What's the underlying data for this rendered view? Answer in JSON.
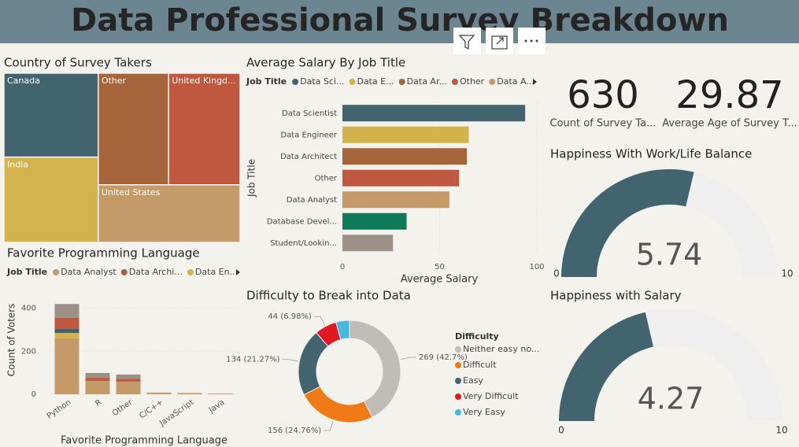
{
  "title": "Data Professional Survey Breakdown",
  "cards": [
    {
      "value": 630,
      "label": "Count of Survey Ta..."
    },
    {
      "value": 29.87,
      "label": "Average Age of Survey T..."
    }
  ],
  "chart_data": [
    {
      "type": "treemap",
      "title": "Country of Survey Takers",
      "categories": [
        "Canada",
        "Other",
        "United Kingd...",
        "India",
        "United States"
      ],
      "values": [
        127,
        126,
        128,
        129,
        131
      ],
      "colors": [
        "#41646e",
        "#a5643a",
        "#c0573f",
        "#d3b34b",
        "#c39a68"
      ]
    },
    {
      "type": "bar",
      "orientation": "horizontal",
      "title": "Average Salary By Job Title",
      "legend_title": "Job Title",
      "legend": [
        {
          "name": "Data Sci...",
          "color": "#41646e"
        },
        {
          "name": "Data E...",
          "color": "#d3b34b"
        },
        {
          "name": "Data Ar...",
          "color": "#a5643a"
        },
        {
          "name": "Other",
          "color": "#c0573f"
        },
        {
          "name": "Data A...",
          "color": "#c39a68"
        }
      ],
      "categories": [
        "Data Scientist",
        "Data Engineer",
        "Data Architect",
        "Other",
        "Data Analyst",
        "Database Devel...",
        "Student/Lookin..."
      ],
      "values": [
        94,
        65,
        64,
        60,
        55,
        33,
        26
      ],
      "colors": [
        "#41646e",
        "#d3b34b",
        "#a5643a",
        "#c0573f",
        "#c39a68",
        "#0e7a5a",
        "#9d9187"
      ],
      "xlim": [
        0,
        100
      ],
      "xticks": [
        0,
        50,
        100
      ],
      "xlabel": "Average Salary",
      "ylabel": "Job Title",
      "grid": true
    },
    {
      "type": "bar",
      "orientation": "vertical",
      "stacked": true,
      "title": "Favorite Programming Language",
      "legend_title": "Job Title",
      "categories": [
        "Python",
        "R",
        "Other",
        "C/C++",
        "JavaScript",
        "Java"
      ],
      "series": [
        {
          "name": "Data Analyst",
          "color": "#c39a68",
          "values": [
            260,
            62,
            58,
            5,
            4,
            2
          ]
        },
        {
          "name": "Data Archi...",
          "color": "#a5643a",
          "values": [
            0,
            4,
            3,
            0,
            0,
            0
          ]
        },
        {
          "name": "Data En...",
          "color": "#d3b34b",
          "values": [
            25,
            0,
            0,
            1,
            1,
            0
          ]
        },
        {
          "color": "#41646e",
          "values": [
            20,
            0,
            0,
            0,
            0,
            0
          ]
        },
        {
          "color": "#c0573f",
          "values": [
            50,
            11,
            11,
            1,
            1,
            1
          ]
        },
        {
          "color": "#9d9187",
          "values": [
            65,
            22,
            20,
            1,
            0,
            0
          ]
        }
      ],
      "ylim": [
        0,
        450
      ],
      "yticks": [
        0,
        200,
        400
      ],
      "xlabel": "Favorite Programming Language",
      "ylabel": "Count of Voters",
      "grid": true
    },
    {
      "type": "donut",
      "title": "Difficulty to Break into Data",
      "legend_title": "Difficulty",
      "categories": [
        "Neither easy no...",
        "Difficult",
        "Easy",
        "Very Difficult",
        "Very Easy"
      ],
      "values": [
        269,
        156,
        134,
        44,
        27
      ],
      "value_labels": [
        "269 (42.7%)",
        "156 (24.76%)",
        "134 (21.27%)",
        "44 (6.98%)",
        null
      ],
      "colors": [
        "#c0bcb6",
        "#f07a15",
        "#41646e",
        "#e0181f",
        "#45b8e0"
      ]
    },
    {
      "type": "gauge",
      "title": "Happiness With Work/Life Balance",
      "value": 5.74,
      "ylim": [
        0,
        10
      ],
      "color": "#41646e"
    },
    {
      "type": "gauge",
      "title": "Happiness with Salary",
      "value": 4.27,
      "ylim": [
        0,
        10
      ],
      "color": "#41646e"
    }
  ]
}
